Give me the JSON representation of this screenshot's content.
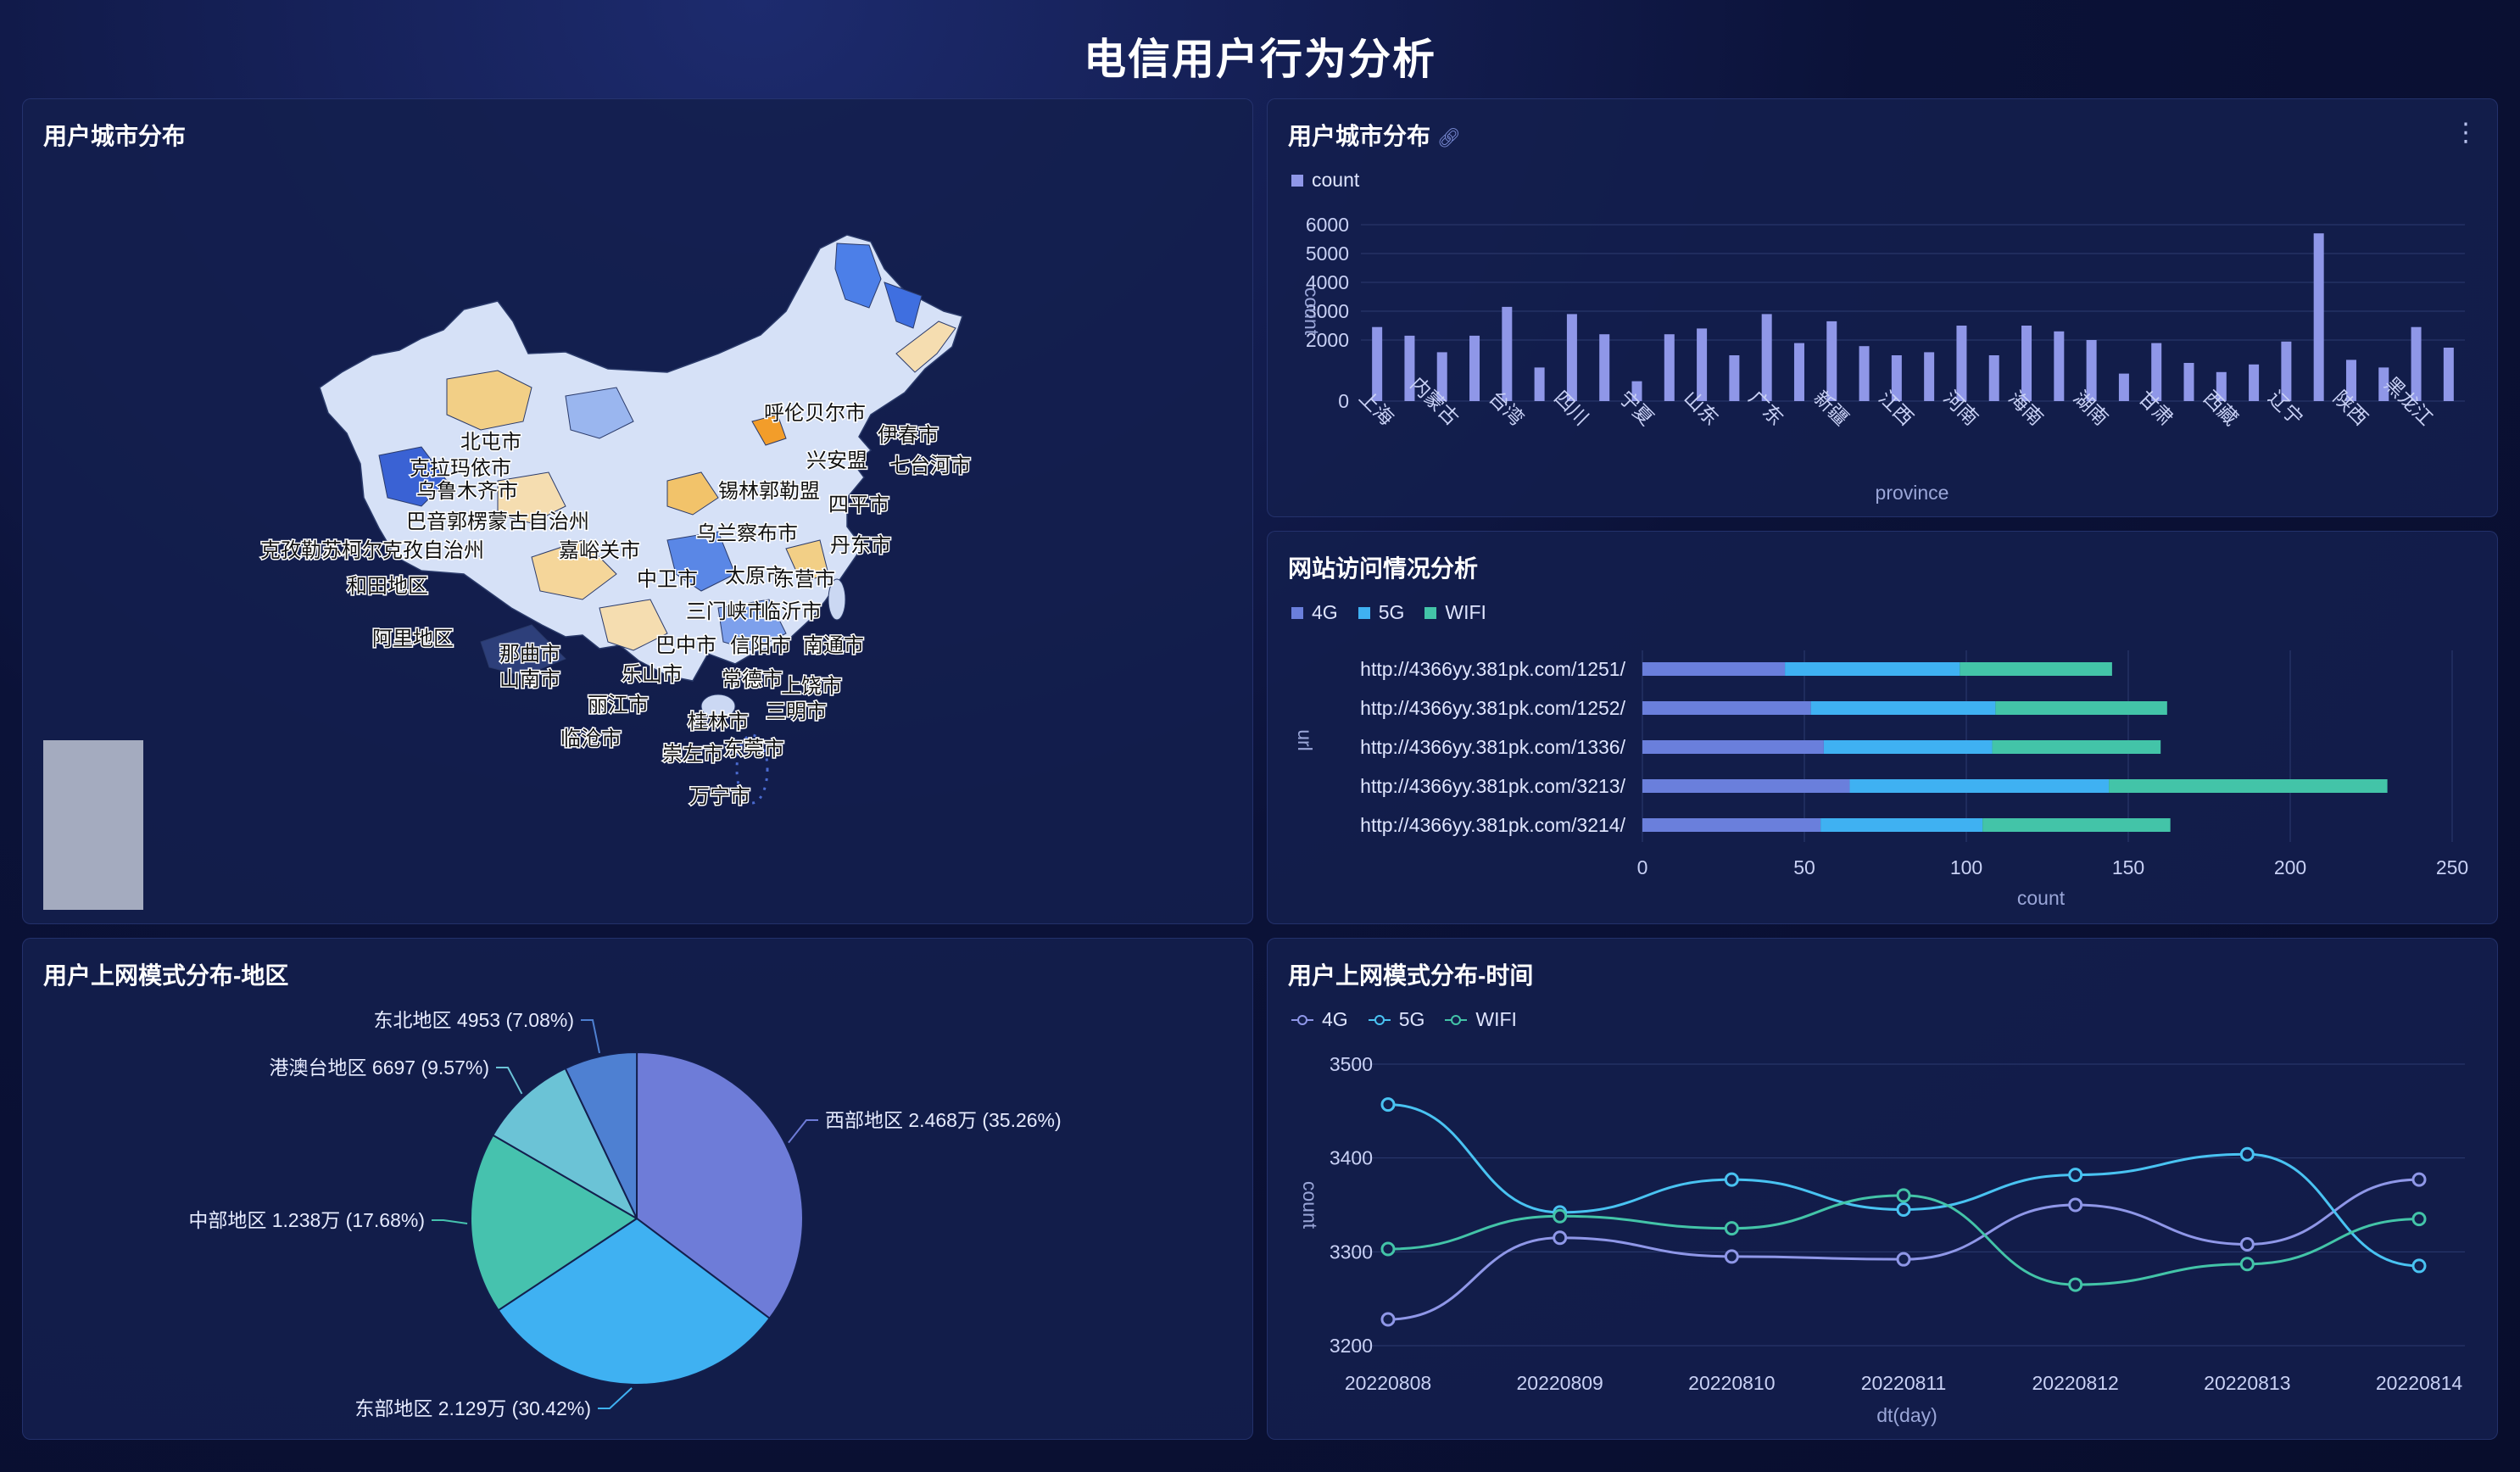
{
  "page": {
    "title": "电信用户行为分析"
  },
  "map_panel": {
    "title": "用户城市分布",
    "city_labels": [
      "呼伦贝尔市",
      "伊春市",
      "北屯市",
      "兴安盟",
      "七台河市",
      "克拉玛依市",
      "锡林郭勒盟",
      "四平市",
      "乌鲁木齐市",
      "巴音郭楞蒙古自治州",
      "乌兰察布市",
      "丹东市",
      "克孜勒苏柯尔克孜自治州",
      "嘉峪关市",
      "中卫市",
      "太原市",
      "东营市",
      "和田地区",
      "三门峡市",
      "临沂市",
      "阿里地区",
      "巴中市",
      "信阳市",
      "南通市",
      "那曲市",
      "山南市",
      "乐山市",
      "常德市",
      "上饶市",
      "丽江市",
      "三明市",
      "桂林市",
      "临沧市",
      "崇左市",
      "东莞市",
      "万宁市"
    ]
  },
  "bar_panel": {
    "title": "用户城市分布",
    "link_icon": "link-icon",
    "more_icon": "more-vertical-icon",
    "chart_data": {
      "type": "bar",
      "legend": [
        "count"
      ],
      "xlabel": "province",
      "ylabel": "count",
      "y_ticks": [
        "0",
        "2000",
        "3000",
        "4000",
        "5000",
        "6000"
      ],
      "x_tick_labels": [
        "上海",
        "内蒙古",
        "台湾",
        "四川",
        "宁夏",
        "山东",
        "广东",
        "新疆",
        "江西",
        "河南",
        "海南",
        "湖南",
        "甘肃",
        "西藏",
        "辽宁",
        "陕西",
        "黑龙江"
      ],
      "values": [
        2450,
        2150,
        1600,
        2150,
        3150,
        1100,
        2900,
        2200,
        650,
        2200,
        2400,
        1500,
        2900,
        1900,
        2650,
        1800,
        1500,
        1600,
        2500,
        1500,
        2500,
        2300,
        2000,
        900,
        1900,
        1250,
        950,
        1200,
        1950,
        5700,
        1350,
        1100,
        2450,
        1750
      ],
      "color": "#8f97e8"
    }
  },
  "url_panel": {
    "title": "网站访问情况分析",
    "chart_data": {
      "type": "bar",
      "orientation": "horizontal-stacked",
      "ylabel": "url",
      "xlabel": "count",
      "x_ticks": [
        "0",
        "50",
        "100",
        "150",
        "200",
        "250"
      ],
      "categories": [
        "http://4366yy.381pk.com/1251/",
        "http://4366yy.381pk.com/1252/",
        "http://4366yy.381pk.com/1336/",
        "http://4366yy.381pk.com/3213/",
        "http://4366yy.381pk.com/3214/"
      ],
      "series": [
        {
          "name": "4G",
          "color": "#6a7fdc",
          "values": [
            44,
            52,
            56,
            64,
            55
          ]
        },
        {
          "name": "5G",
          "color": "#3fb1f2",
          "values": [
            54,
            57,
            52,
            80,
            50
          ]
        },
        {
          "name": "WIFI",
          "color": "#43c4a8",
          "values": [
            47,
            53,
            52,
            86,
            58
          ]
        }
      ]
    }
  },
  "pie_panel": {
    "title": "用户上网模式分布-地区",
    "chart_data": {
      "type": "pie",
      "slices": [
        {
          "label": "西部地区 2.468万 (35.26%)",
          "percent": 35.26,
          "color": "#6e7cd8"
        },
        {
          "label": "东部地区 2.129万 (30.42%)",
          "percent": 30.42,
          "color": "#3fb1f2"
        },
        {
          "label": "中部地区 1.238万 (17.68%)",
          "percent": 17.68,
          "color": "#46c2ae"
        },
        {
          "label": "港澳台地区 6697 (9.57%)",
          "percent": 9.57,
          "color": "#6bc3d6"
        },
        {
          "label": "东北地区 4953 (7.08%)",
          "percent": 7.08,
          "color": "#4e80d2"
        }
      ]
    }
  },
  "line_panel": {
    "title": "用户上网模式分布-时间",
    "chart_data": {
      "type": "line",
      "xlabel": "dt(day)",
      "ylabel": "count",
      "x": [
        "20220808",
        "20220809",
        "20220810",
        "20220811",
        "20220812",
        "20220813",
        "20220814"
      ],
      "y_ticks": [
        "3200",
        "3300",
        "3400",
        "3500"
      ],
      "ylim": [
        3200,
        3500
      ],
      "series": [
        {
          "name": "4G",
          "color": "#8f97e8",
          "values": [
            3228,
            3315,
            3295,
            3292,
            3350,
            3308,
            3377
          ]
        },
        {
          "name": "5G",
          "color": "#49c3f2",
          "values": [
            3457,
            3342,
            3377,
            3345,
            3382,
            3404,
            3285
          ]
        },
        {
          "name": "WIFI",
          "color": "#43c4a8",
          "values": [
            3303,
            3338,
            3325,
            3360,
            3265,
            3287,
            3335
          ]
        }
      ]
    }
  }
}
